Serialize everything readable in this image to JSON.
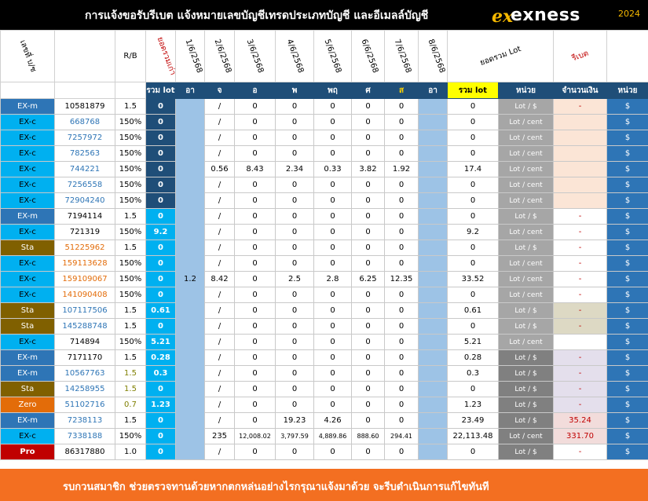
{
  "header": {
    "title": "การแจ้งขอรับรีเบต  แจ้งหมายเลขบัญชีเทรดประเภทบัญชี และอีเมลล์บัญชี",
    "logo_text": "exness",
    "logo_mark": "ex",
    "year": "2024"
  },
  "columns_top": {
    "c0": "เลขที่ บ/ช",
    "c2": "R/B",
    "c3": "ยอดรวมเก่า",
    "d1": "1/6/2568",
    "d2": "2/6/2568",
    "d3": "3/6/2568",
    "d4": "4/6/2568",
    "d5": "5/6/2568",
    "d6": "6/6/2568",
    "d7": "7/6/2568",
    "d8": "8/6/2568",
    "total": "ยอดรวม Lot",
    "amount": "รีเบต"
  },
  "columns_sub": {
    "lot": "รวม lot",
    "sun1": "อา",
    "mon": "จ",
    "tue": "อ",
    "wed": "พ",
    "thu": "พฤ",
    "fri": "ศ",
    "sat": "ส",
    "sun2": "อา",
    "total": "รวม lot",
    "unit": "หน่วย",
    "amount": "จำนวนเงิน",
    "cur": "หน่วย"
  },
  "rows": [
    {
      "type": "EX-m",
      "acct": "10581879",
      "rb": "1.5",
      "lot": "0",
      "d1": "/",
      "d2": "0",
      "d3": "0",
      "d4": "0",
      "d5": "0",
      "d6": "0",
      "d7": "",
      "total": "0",
      "unit": "Lot / $",
      "amount": "-",
      "cur": "$"
    },
    {
      "type": "EX-c",
      "acct": "668768",
      "rb": "150%",
      "lot": "0",
      "d1": "/",
      "d2": "0",
      "d3": "0",
      "d4": "0",
      "d5": "0",
      "d6": "0",
      "d7": "",
      "total": "0",
      "unit": "Lot / cent",
      "amount": "",
      "cur": "$"
    },
    {
      "type": "EX-c",
      "acct": "7257972",
      "rb": "150%",
      "lot": "0",
      "d1": "/",
      "d2": "0",
      "d3": "0",
      "d4": "0",
      "d5": "0",
      "d6": "0",
      "d7": "",
      "total": "0",
      "unit": "Lot / cent",
      "amount": "",
      "cur": "$"
    },
    {
      "type": "EX-c",
      "acct": "782563",
      "rb": "150%",
      "lot": "0",
      "d1": "/",
      "d2": "0",
      "d3": "0",
      "d4": "0",
      "d5": "0",
      "d6": "0",
      "d7": "",
      "total": "0",
      "unit": "Lot / cent",
      "amount": "",
      "cur": "$"
    },
    {
      "type": "EX-c",
      "acct": "744221",
      "rb": "150%",
      "lot": "0",
      "d1": "0.56",
      "d2": "8.43",
      "d3": "2.34",
      "d4": "0.33",
      "d5": "3.82",
      "d6": "1.92",
      "d7": "",
      "total": "17.4",
      "unit": "Lot / cent",
      "amount": "",
      "cur": "$"
    },
    {
      "type": "EX-c",
      "acct": "7256558",
      "rb": "150%",
      "lot": "0",
      "d1": "/",
      "d2": "0",
      "d3": "0",
      "d4": "0",
      "d5": "0",
      "d6": "0",
      "d7": "",
      "total": "0",
      "unit": "Lot / cent",
      "amount": "",
      "cur": "$"
    },
    {
      "type": "EX-c",
      "acct": "72904240",
      "rb": "150%",
      "lot": "0",
      "d1": "/",
      "d2": "0",
      "d3": "0",
      "d4": "0",
      "d5": "0",
      "d6": "0",
      "d7": "",
      "total": "0",
      "unit": "Lot / cent",
      "amount": "",
      "cur": "$"
    },
    {
      "type": "EX-m",
      "acct": "7194114",
      "rb": "1.5",
      "lot": "0",
      "d1": "/",
      "d2": "0",
      "d3": "0",
      "d4": "0",
      "d5": "0",
      "d6": "0",
      "d7": "",
      "total": "0",
      "unit": "Lot / $",
      "amount": "-",
      "cur": "$"
    },
    {
      "type": "EX-c",
      "acct": "721319",
      "rb": "150%",
      "lot": "9.2",
      "d1": "/",
      "d2": "0",
      "d3": "0",
      "d4": "0",
      "d5": "0",
      "d6": "0",
      "d7": "",
      "total": "9.2",
      "unit": "Lot / cent",
      "amount": "-",
      "cur": "$"
    },
    {
      "type": "Sta",
      "acct": "51225962",
      "rb": "1.5",
      "lot": "0",
      "d1": "/",
      "d2": "0",
      "d3": "0",
      "d4": "0",
      "d5": "0",
      "d6": "0",
      "d7": "",
      "total": "0",
      "unit": "Lot / $",
      "amount": "-",
      "cur": "$"
    },
    {
      "type": "EX-c",
      "acct": "159113628",
      "rb": "150%",
      "lot": "0",
      "d1": "/",
      "d2": "0",
      "d3": "0",
      "d4": "0",
      "d5": "0",
      "d6": "0",
      "d7": "",
      "total": "0",
      "unit": "Lot / cent",
      "amount": "-",
      "cur": "$"
    },
    {
      "type": "EX-c",
      "acct": "159109067",
      "rb": "150%",
      "lot": "0",
      "d1": "8.42",
      "d2": "0",
      "d3": "2.5",
      "d4": "2.8",
      "d5": "6.25",
      "d6": "12.35",
      "d7": "",
      "total": "33.52",
      "unit": "Lot / cent",
      "amount": "-",
      "cur": "$"
    },
    {
      "type": "EX-c",
      "acct": "141090408",
      "rb": "150%",
      "lot": "0",
      "d1": "/",
      "d2": "0",
      "d3": "0",
      "d4": "0",
      "d5": "0",
      "d6": "0",
      "d7": "",
      "total": "0",
      "unit": "Lot / cent",
      "amount": "-",
      "cur": "$"
    },
    {
      "type": "Sta",
      "acct": "107117506",
      "rb": "1.5",
      "lot": "0.61",
      "d1": "/",
      "d2": "0",
      "d3": "0",
      "d4": "0",
      "d5": "0",
      "d6": "0",
      "d7": "",
      "total": "0.61",
      "unit": "Lot / $",
      "amount": "-",
      "cur": "$"
    },
    {
      "type": "Sta",
      "acct": "145288748",
      "rb": "1.5",
      "lot": "0",
      "d1": "/",
      "d2": "0",
      "d3": "0",
      "d4": "0",
      "d5": "0",
      "d6": "0",
      "d7": "",
      "total": "0",
      "unit": "Lot / $",
      "amount": "-",
      "cur": "$"
    },
    {
      "type": "EX-c",
      "acct": "714894",
      "rb": "150%",
      "lot": "5.21",
      "d1": "/",
      "d2": "0",
      "d3": "0",
      "d4": "0",
      "d5": "0",
      "d6": "0",
      "d7": "",
      "total": "5.21",
      "unit": "Lot / cent",
      "amount": "",
      "cur": "$"
    },
    {
      "type": "EX-m",
      "acct": "7171170",
      "rb": "1.5",
      "lot": "0.28",
      "d1": "/",
      "d2": "0",
      "d3": "0",
      "d4": "0",
      "d5": "0",
      "d6": "0",
      "d7": "",
      "total": "0.28",
      "unit": "Lot / $",
      "amount": "-",
      "cur": "$"
    },
    {
      "type": "EX-m",
      "acct": "10567763",
      "rb": "1.5",
      "lot": "0.3",
      "d1": "/",
      "d2": "0",
      "d3": "0",
      "d4": "0",
      "d5": "0",
      "d6": "0",
      "d7": "",
      "total": "0.3",
      "unit": "Lot / $",
      "amount": "-",
      "cur": "$"
    },
    {
      "type": "Sta",
      "acct": "14258955",
      "rb": "1.5",
      "lot": "0",
      "d1": "/",
      "d2": "0",
      "d3": "0",
      "d4": "0",
      "d5": "0",
      "d6": "0",
      "d7": "",
      "total": "0",
      "unit": "Lot / $",
      "amount": "-",
      "cur": "$"
    },
    {
      "type": "Zero",
      "acct": "51102716",
      "rb": "0.7",
      "lot": "1.23",
      "d1": "/",
      "d2": "0",
      "d3": "0",
      "d4": "0",
      "d5": "0",
      "d6": "0",
      "d7": "",
      "total": "1.23",
      "unit": "Lot / $",
      "amount": "-",
      "cur": "$"
    },
    {
      "type": "EX-m",
      "acct": "7238113",
      "rb": "1.5",
      "lot": "0",
      "d1": "/",
      "d2": "0",
      "d3": "19.23",
      "d4": "4.26",
      "d5": "0",
      "d6": "0",
      "d7": "",
      "total": "23.49",
      "unit": "Lot / $",
      "amount": "35.24",
      "cur": "$"
    },
    {
      "type": "EX-c",
      "acct": "7338188",
      "rb": "150%",
      "lot": "0",
      "d1": "235",
      "d2": "12,008.02",
      "d3": "3,797.59",
      "d4": "4,889.86",
      "d5": "888.60",
      "d6": "294.41",
      "d7": "",
      "total": "22,113.48",
      "unit": "Lot / cent",
      "amount": "331.70",
      "cur": "$"
    },
    {
      "type": "Pro",
      "acct": "86317880",
      "rb": "1.0",
      "lot": "0",
      "d1": "/",
      "d2": "0",
      "d3": "0",
      "d4": "0",
      "d5": "0",
      "d6": "0",
      "d7": "",
      "total": "0",
      "unit": "Lot / $",
      "amount": "-",
      "cur": "$"
    }
  ],
  "merged_sunday_value": "1.2",
  "footer": {
    "text": "รบกวนสมาชิก ช่วยตรวจทานด้วยหากตกหล่นอย่างไรกรุณาแจ้งมาด้วย จะรีบดำเนินการแก้ไขทันที"
  },
  "colors": {
    "header_bg": "#000000",
    "accent_orange": "#f36f21",
    "brand_yellow": "#f5b800",
    "subheader_bg": "#1f4e78"
  }
}
